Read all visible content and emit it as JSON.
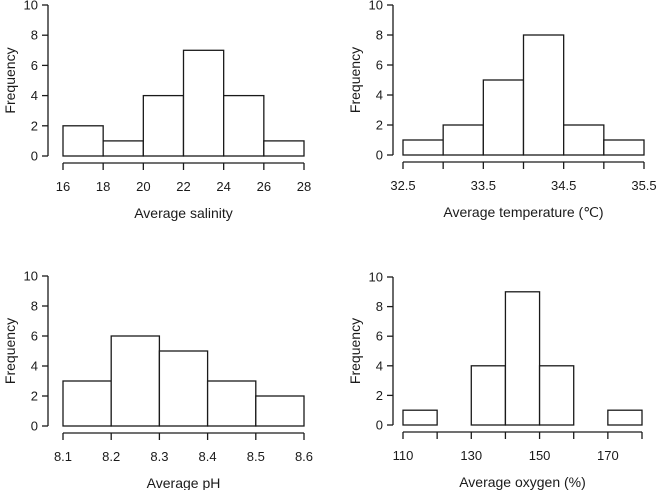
{
  "chart_data": [
    {
      "type": "bar",
      "subtype": "histogram",
      "xlabel": "Average salinity",
      "ylabel": "Frequency",
      "bin_edges": [
        16,
        18,
        20,
        22,
        24,
        26,
        28
      ],
      "values": [
        2,
        1,
        4,
        7,
        4,
        1
      ],
      "xlim": [
        16,
        28
      ],
      "ylim": [
        0,
        10
      ],
      "x_tick_labels": [
        "16",
        "18",
        "20",
        "22",
        "24",
        "26",
        "28"
      ],
      "x_tick_positions": [
        16,
        18,
        20,
        22,
        24,
        26,
        28
      ],
      "y_tick_labels": [
        "0",
        "2",
        "4",
        "6",
        "8",
        "10"
      ],
      "grid": false
    },
    {
      "type": "bar",
      "subtype": "histogram",
      "xlabel": "Average temperature (℃)",
      "ylabel": "Frequency",
      "bin_edges": [
        32.5,
        33,
        33.5,
        34,
        34.5,
        35,
        35.5
      ],
      "values": [
        1,
        2,
        5,
        8,
        2,
        1
      ],
      "xlim": [
        32.5,
        35.5
      ],
      "ylim": [
        0,
        10
      ],
      "x_tick_labels": [
        "32.5",
        "33.5",
        "34.5",
        "35.5"
      ],
      "x_tick_positions": [
        32.5,
        33.5,
        34.5,
        35.5
      ],
      "y_tick_labels": [
        "0",
        "2",
        "4",
        "6",
        "8",
        "10"
      ],
      "grid": false
    },
    {
      "type": "bar",
      "subtype": "histogram",
      "xlabel": "Average pH",
      "ylabel": "Frequency",
      "bin_edges": [
        8.1,
        8.2,
        8.3,
        8.4,
        8.5,
        8.6
      ],
      "values": [
        3,
        6,
        5,
        3,
        2
      ],
      "xlim": [
        8.1,
        8.6
      ],
      "ylim": [
        0,
        10
      ],
      "x_tick_labels": [
        "8.1",
        "8.2",
        "8.3",
        "8.4",
        "8.5",
        "8.6"
      ],
      "x_tick_positions": [
        8.1,
        8.2,
        8.3,
        8.4,
        8.5,
        8.6
      ],
      "y_tick_labels": [
        "0",
        "2",
        "4",
        "6",
        "8",
        "10"
      ],
      "grid": false
    },
    {
      "type": "bar",
      "subtype": "histogram",
      "xlabel": "Average oxygen (%)",
      "ylabel": "Frequency",
      "bin_edges": [
        110,
        120,
        130,
        140,
        150,
        160,
        170,
        180
      ],
      "values": [
        1,
        0,
        4,
        9,
        4,
        0,
        1
      ],
      "xlim": [
        110,
        180
      ],
      "ylim": [
        0,
        10
      ],
      "x_tick_labels": [
        "110",
        "130",
        "150",
        "170"
      ],
      "x_tick_positions": [
        110,
        130,
        150,
        170
      ],
      "y_tick_labels": [
        "0",
        "2",
        "4",
        "6",
        "8",
        "10"
      ],
      "grid": false
    }
  ]
}
